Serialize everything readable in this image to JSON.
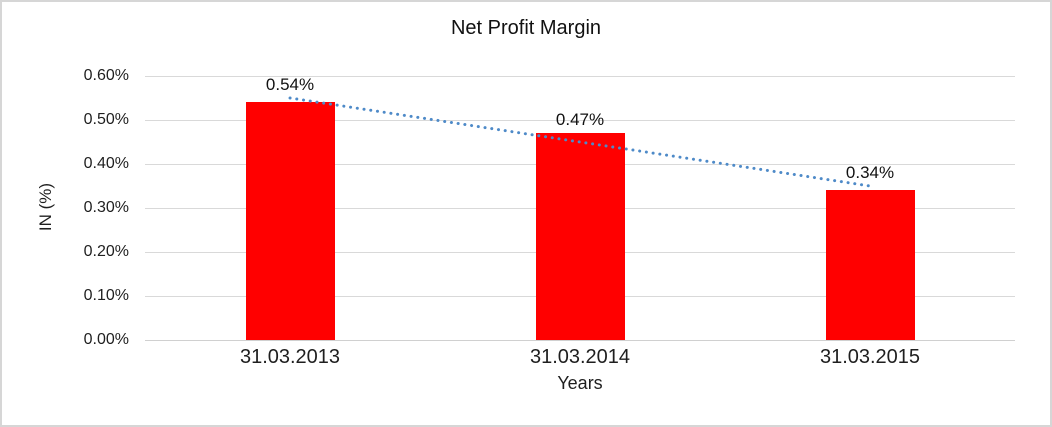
{
  "chart_data": {
    "type": "bar",
    "title": "Net Profit Margin",
    "xlabel": "Years",
    "ylabel": "IN (%)",
    "categories": [
      "31.03.2013",
      "31.03.2014",
      "31.03.2015"
    ],
    "values": [
      0.54,
      0.47,
      0.34
    ],
    "value_labels": [
      "0.54%",
      "0.47%",
      "0.34%"
    ],
    "ylim": [
      0,
      0.6
    ],
    "yticks": [
      {
        "value": 0.0,
        "label": "0.00%"
      },
      {
        "value": 0.1,
        "label": "0.10%"
      },
      {
        "value": 0.2,
        "label": "0.20%"
      },
      {
        "value": 0.3,
        "label": "0.30%"
      },
      {
        "value": 0.4,
        "label": "0.40%"
      },
      {
        "value": 0.5,
        "label": "0.50%"
      },
      {
        "value": 0.6,
        "label": "0.60%"
      }
    ],
    "grid": true,
    "legend": false,
    "trendline": {
      "style": "dotted",
      "start_value": 0.55,
      "end_value": 0.35
    },
    "colors": {
      "bar": "#ff0000",
      "trendline": "#4e8ac8",
      "gridline": "#d9d9d9",
      "frame_border": "#d6d6d6",
      "text": "#1f1f1f"
    }
  }
}
